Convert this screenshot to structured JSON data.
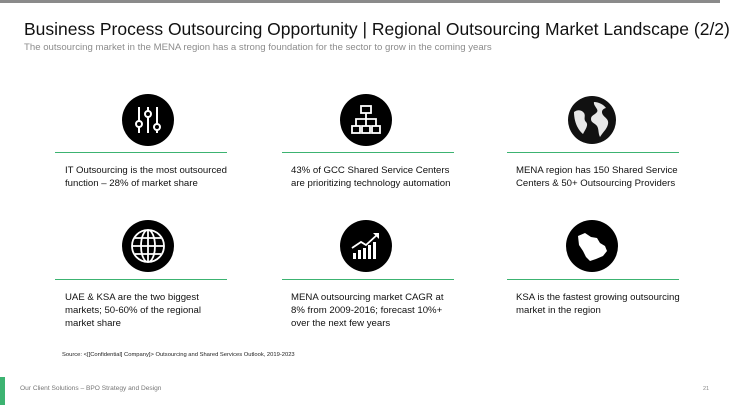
{
  "header": {
    "title": "Business Process Outsourcing Opportunity | Regional Outsourcing Market Landscape (2/2)",
    "subtitle": "The outsourcing market in the MENA region has a strong foundation for the sector to grow in the coming years"
  },
  "items": [
    {
      "text": "IT Outsourcing is the most outsourced function – 28% of market share"
    },
    {
      "text": "43% of GCC Shared Service Centers are prioritizing technology automation"
    },
    {
      "text": "MENA region has 150 Shared Service Centers & 50+ Outsourcing Providers"
    },
    {
      "text": "UAE & KSA are the two biggest markets; 50-60% of the regional market share"
    },
    {
      "text": "MENA outsourcing market CAGR at 8% from 2009-2016; forecast 10%+ over the next few years"
    },
    {
      "text": "KSA is the fastest growing outsourcing market in the region"
    }
  ],
  "source": "Source: <[[Confidential] Company]> Outsourcing and Shared Services Outlook, 2019-2023",
  "footer": {
    "text": "Our Client Solutions – BPO Strategy and Design",
    "page": "21"
  }
}
